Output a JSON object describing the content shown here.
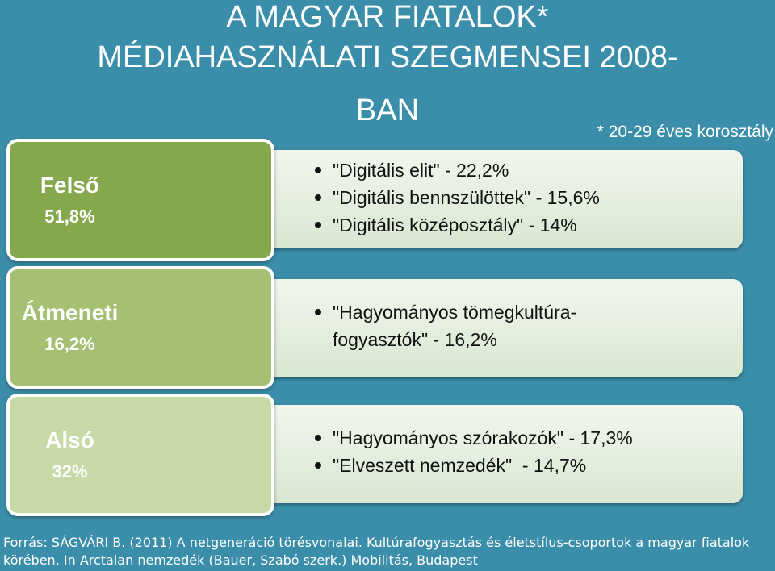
{
  "title": {
    "line1": "A MAGYAR FIATALOK*",
    "line2": "MÉDIAHASZNÁLATI SZEGMENSEI 2008-",
    "line3": "BAN"
  },
  "note": "* 20-29 éves korosztály",
  "segments": [
    {
      "name": "Felső",
      "percent": "51,8%",
      "color": "#85a84d",
      "items": [
        "\"Digitális elit\" - 22,2%",
        "\"Digitális bennszülöttek\" - 15,6%",
        "\"Digitális középosztály\" - 14%"
      ]
    },
    {
      "name": "Átmeneti",
      "percent": "16,2%",
      "color": "#a6c073",
      "items": [
        "\"Hagyományos tömegkultúra-fogyasztók\" - 16,2%"
      ]
    },
    {
      "name": "Alsó",
      "percent": "32%",
      "color": "#c7d9a6",
      "items": [
        "\"Hagyományos szórakozók\" - 17,3%",
        "\"Elveszett nemzedék\"  - 14,7%"
      ]
    }
  ],
  "source": "Forrás: SÁGVÁRI B. (2011) A netgeneráció törésvonalai. Kultúrafogyasztás és életstílus-csoportok a magyar fiatalok körében. In Arctalan nemzedék (Bauer, Szabó szerk.) Mobilitás, Budapest"
}
